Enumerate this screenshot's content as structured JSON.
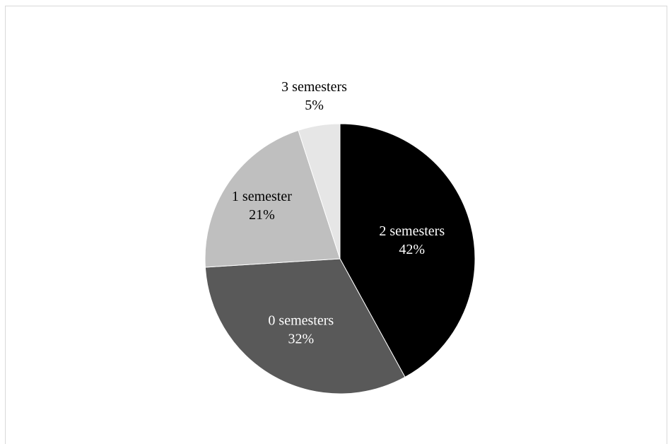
{
  "chart_data": {
    "type": "pie",
    "title": "",
    "slices": [
      {
        "label": "2 semesters",
        "value": 42,
        "value_label": "42%",
        "color": "#000000",
        "label_color": "#ffffff"
      },
      {
        "label": "0 semesters",
        "value": 32,
        "value_label": "32%",
        "color": "#595959",
        "label_color": "#ffffff"
      },
      {
        "label": "1 semester",
        "value": 21,
        "value_label": "21%",
        "color": "#bfbfbf",
        "label_color": "#000000"
      },
      {
        "label": "3 semesters",
        "value": 5,
        "value_label": "5%",
        "color": "#e6e6e6",
        "label_color": "#000000"
      }
    ],
    "start_angle_deg": 0,
    "direction": "clockwise",
    "legend": "none"
  }
}
